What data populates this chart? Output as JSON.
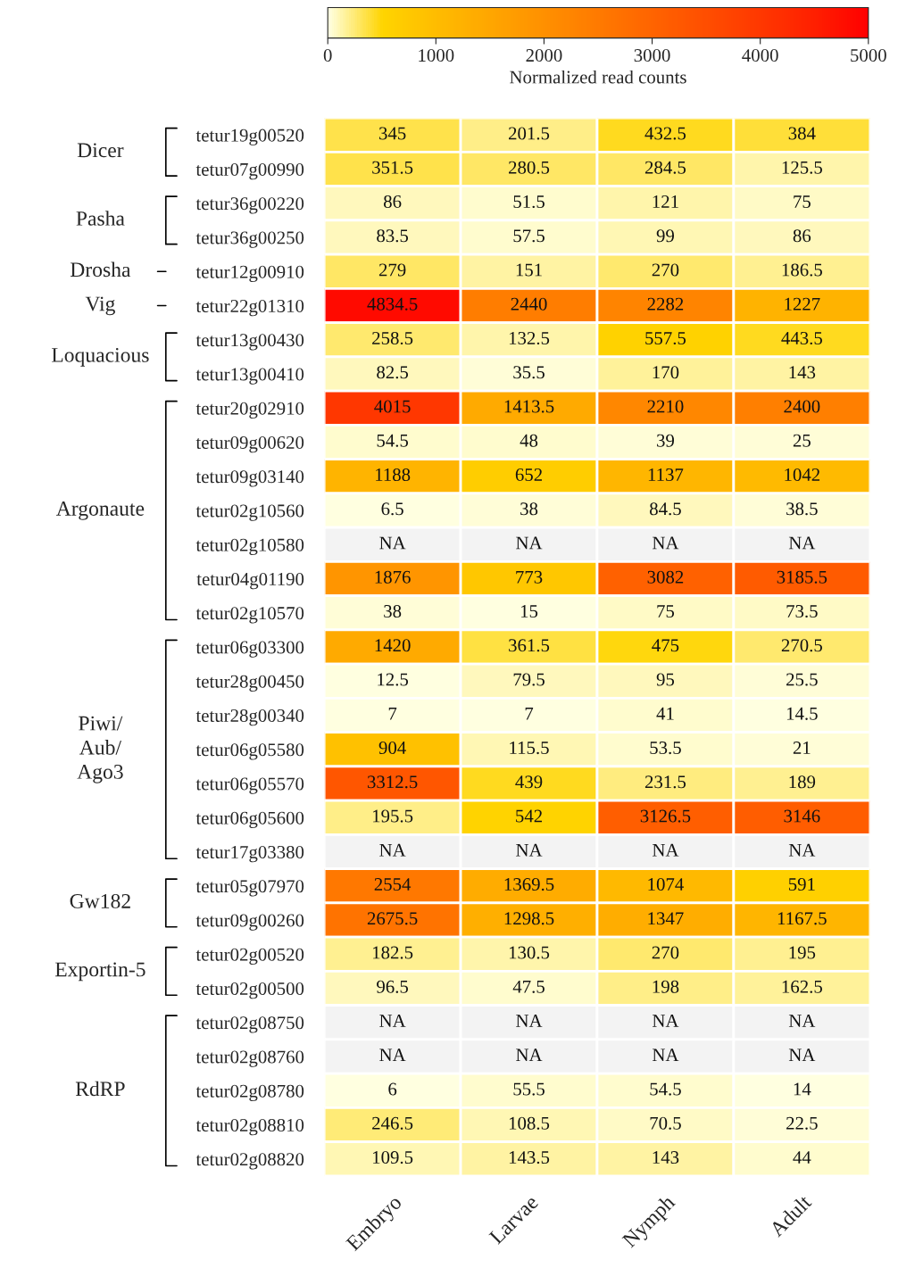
{
  "chart_data": {
    "type": "heatmap",
    "clabel": "Normalized read counts",
    "clim": [
      0,
      5000
    ],
    "cticks": [
      0,
      1000,
      2000,
      3000,
      4000,
      5000
    ],
    "colors": [
      "#ffffe0",
      "#ffd400",
      "#ffbc00",
      "#ffa600",
      "#ff9000",
      "#ff7a00",
      "#ff6400",
      "#ff4e00",
      "#ff3800",
      "#ff2000",
      "#ff0000"
    ],
    "categories": [
      "Embryo",
      "Larvae",
      "Nymph",
      "Adult"
    ],
    "y_categories": [
      "tetur19g00520",
      "tetur07g00990",
      "tetur36g00220",
      "tetur36g00250",
      "tetur12g00910",
      "tetur22g01310",
      "tetur13g00430",
      "tetur13g00410",
      "tetur20g02910",
      "tetur09g00620",
      "tetur09g03140",
      "tetur02g10560",
      "tetur02g10580",
      "tetur04g01190",
      "tetur02g10570",
      "tetur06g03300",
      "tetur28g00450",
      "tetur28g00340",
      "tetur06g05580",
      "tetur06g05570",
      "tetur06g05600",
      "tetur17g03380",
      "tetur05g07970",
      "tetur09g00260",
      "tetur02g00520",
      "tetur02g00500",
      "tetur02g08750",
      "tetur02g08760",
      "tetur02g08780",
      "tetur02g08810",
      "tetur02g08820"
    ],
    "y2_categories": [
      "Dicer",
      null,
      "Pasha",
      null,
      "Drosha",
      "Vig",
      "Loquacious",
      null,
      null,
      null,
      null,
      "Argonaute",
      null,
      null,
      null,
      null,
      null,
      null,
      "Piwi/\nAub/\nAgo3",
      null,
      null,
      null,
      "Gw182",
      null,
      "Exportin-5",
      null,
      null,
      null,
      "RdRP",
      null,
      null
    ],
    "data_labels": true,
    "cells": [
      [
        345,
        201.5,
        432.5,
        384
      ],
      [
        351.5,
        280.5,
        284.5,
        125.5
      ],
      [
        86,
        51.5,
        121,
        75
      ],
      [
        83.5,
        57.5,
        99,
        86
      ],
      [
        279,
        151,
        270,
        186.5
      ],
      [
        4834.5,
        2440,
        2282,
        1227
      ],
      [
        258.5,
        132.5,
        557.5,
        443.5
      ],
      [
        82.5,
        35.5,
        170,
        143
      ],
      [
        4015,
        1413.5,
        2210,
        2400
      ],
      [
        54.5,
        48,
        39,
        25
      ],
      [
        1188,
        652,
        1137,
        1042
      ],
      [
        6.5,
        38,
        84.5,
        38.5
      ],
      [
        null,
        null,
        null,
        null
      ],
      [
        1876,
        773,
        3082,
        3185.5
      ],
      [
        38,
        15,
        75,
        73.5
      ],
      [
        1420,
        361.5,
        475,
        270.5
      ],
      [
        12.5,
        79.5,
        95,
        25.5
      ],
      [
        7,
        7,
        41,
        14.5
      ],
      [
        904,
        115.5,
        53.5,
        21
      ],
      [
        3312.5,
        439,
        231.5,
        189
      ],
      [
        195.5,
        542,
        3126.5,
        3146
      ],
      [
        null,
        null,
        null,
        null
      ],
      [
        2554,
        1369.5,
        1074,
        591
      ],
      [
        2675.5,
        1298.5,
        1347,
        1167.5
      ],
      [
        182.5,
        130.5,
        270,
        195
      ],
      [
        96.5,
        47.5,
        198,
        162.5
      ],
      [
        null,
        null,
        null,
        null
      ],
      [
        null,
        null,
        null,
        null
      ],
      [
        6,
        55.5,
        54.5,
        14
      ],
      [
        246.5,
        108.5,
        70.5,
        22.5
      ],
      [
        109.5,
        143.5,
        143,
        44
      ]
    ],
    "cell_labels": [
      [
        "345",
        "201.5",
        "432.5",
        "384"
      ],
      [
        "351.5",
        "280.5",
        "284.5",
        "125.5"
      ],
      [
        "86",
        "51.5",
        "121",
        "75"
      ],
      [
        "83.5",
        "57.5",
        "99",
        "86"
      ],
      [
        "279",
        "151",
        "270",
        "186.5"
      ],
      [
        "4834.5",
        "2440",
        "2282",
        "1227"
      ],
      [
        "258.5",
        "132.5",
        "557.5",
        "443.5"
      ],
      [
        "82.5",
        "35.5",
        "170",
        "143"
      ],
      [
        "4015",
        "1413.5",
        "2210",
        "2400"
      ],
      [
        "54.5",
        "48",
        "39",
        "25"
      ],
      [
        "1188",
        "652",
        "1137",
        "1042"
      ],
      [
        "6.5",
        "38",
        "84.5",
        "38.5"
      ],
      [
        "NA",
        "NA",
        "NA",
        "NA"
      ],
      [
        "1876",
        "773",
        "3082",
        "3185.5"
      ],
      [
        "38",
        "15",
        "75",
        "73.5"
      ],
      [
        "1420",
        "361.5",
        "475",
        "270.5"
      ],
      [
        "12.5",
        "79.5",
        "95",
        "25.5"
      ],
      [
        "7",
        "7",
        "41",
        "14.5"
      ],
      [
        "904",
        "115.5",
        "53.5",
        "21"
      ],
      [
        "3312.5",
        "439",
        "231.5",
        "189"
      ],
      [
        "195.5",
        "542",
        "3126.5",
        "3146"
      ],
      [
        "NA",
        "NA",
        "NA",
        "NA"
      ],
      [
        "2554",
        "1369.5",
        "1074",
        "591"
      ],
      [
        "2675.5",
        "1298.5",
        "1347",
        "1167.5"
      ],
      [
        "182.5",
        "130.5",
        "270",
        "195"
      ],
      [
        "96.5",
        "47.5",
        "198",
        "162.5"
      ],
      [
        "NA",
        "NA",
        "NA",
        "NA"
      ],
      [
        "NA",
        "NA",
        "NA",
        "NA"
      ],
      [
        "6",
        "55.5",
        "54.5",
        "14"
      ],
      [
        "246.5",
        "108.5",
        "70.5",
        "22.5"
      ],
      [
        "109.5",
        "143.5",
        "143",
        "44"
      ]
    ]
  }
}
